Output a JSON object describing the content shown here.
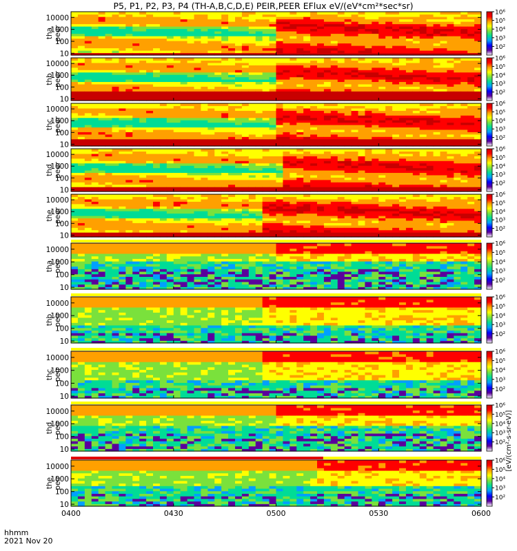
{
  "chart_data": {
    "type": "heatmap",
    "title": "P5, P1, P2, P3, P4 (TH-A,B,C,D,E) PEIR,PEER EFlux eV/(eV*cm²*sec*sr)",
    "x_ticks": [
      "0400",
      "0430",
      "0500",
      "0530",
      "0600"
    ],
    "x_tick_hours": [
      4.0,
      4.5,
      5.0,
      5.5,
      6.0
    ],
    "x_range": [
      4.0,
      6.0
    ],
    "x_axis_label": "hhmm",
    "date_label": "2021 Nov 20",
    "y_scale": "log",
    "y_range_ev": [
      7,
      30000
    ],
    "y_ticks": [
      "10",
      "100",
      "1000",
      "10000"
    ],
    "y_tick_values": [
      10,
      100,
      1000,
      10000
    ],
    "color_scale": "log",
    "colorbar_range": [
      10,
      1000000
    ],
    "colorbar_ticks": [
      "10²",
      "10⁴",
      "10⁶"
    ],
    "colorbar_minor_ticks": [
      "10³",
      "10⁵"
    ],
    "colorbar_label": "[eV/(cm²-s-sr-eV)]",
    "colormap": [
      "#ffffff",
      "#5a009c",
      "#0000ff",
      "#00a0ff",
      "#00dc96",
      "#7ae13c",
      "#ffff00",
      "#ffa000",
      "#ff0000",
      "#c80000"
    ],
    "panels": [
      {
        "probe": "tha",
        "species": "peer",
        "label": [
          "tha",
          "peer"
        ],
        "pattern": "electron",
        "cold_boundary_ev": 12,
        "hot_onset_hour": 5.0,
        "quality_bar": "none"
      },
      {
        "probe": "thb",
        "species": "peer",
        "label": [
          "thb",
          "peer"
        ],
        "pattern": "electron",
        "cold_boundary_ev": 40,
        "hot_onset_hour": 5.0,
        "quality_bar": "none"
      },
      {
        "probe": "thc",
        "species": "peer",
        "label": [
          "thc",
          "peer"
        ],
        "pattern": "electron",
        "cold_boundary_ev": 30,
        "hot_onset_hour": 5.0,
        "quality_bar": "none"
      },
      {
        "probe": "thd",
        "species": "peer",
        "label": [
          "thd",
          "peer"
        ],
        "pattern": "electron",
        "cold_boundary_ev": 20,
        "hot_onset_hour": 5.05,
        "quality_bar": "none"
      },
      {
        "probe": "the",
        "species": "peer",
        "label": [
          "the",
          "peer"
        ],
        "pattern": "electron",
        "cold_boundary_ev": 15,
        "hot_onset_hour": 4.95,
        "quality_bar": "none"
      },
      {
        "probe": "tha",
        "species": "peir",
        "label": [
          "tha",
          "peir"
        ],
        "pattern": "ion",
        "cold_boundary_ev": 300,
        "hot_onset_hour": 5.0,
        "quality_bar": "yellow"
      },
      {
        "probe": "thb",
        "species": "peir",
        "label": [
          "thb",
          "peir"
        ],
        "pattern": "ion",
        "cold_boundary_ev": 40,
        "hot_onset_hour": 4.95,
        "quality_bar": "yellow"
      },
      {
        "probe": "thc",
        "species": "peir",
        "label": [
          "thc",
          "peir"
        ],
        "pattern": "ion",
        "cold_boundary_ev": 40,
        "hot_onset_hour": 4.95,
        "quality_bar": "yellow"
      },
      {
        "probe": "thd",
        "species": "peir",
        "label": [
          "thd",
          "peir"
        ],
        "pattern": "ion",
        "cold_boundary_ev": 200,
        "hot_onset_hour": 5.0,
        "quality_bar": "yellow"
      },
      {
        "probe": "the",
        "species": "peir",
        "label": [
          "the",
          "peir"
        ],
        "pattern": "ion",
        "cold_boundary_ev": 80,
        "hot_onset_hour": 5.2,
        "quality_bar": "red-then-yellow",
        "quality_switch_hour": 5.23
      }
    ]
  }
}
